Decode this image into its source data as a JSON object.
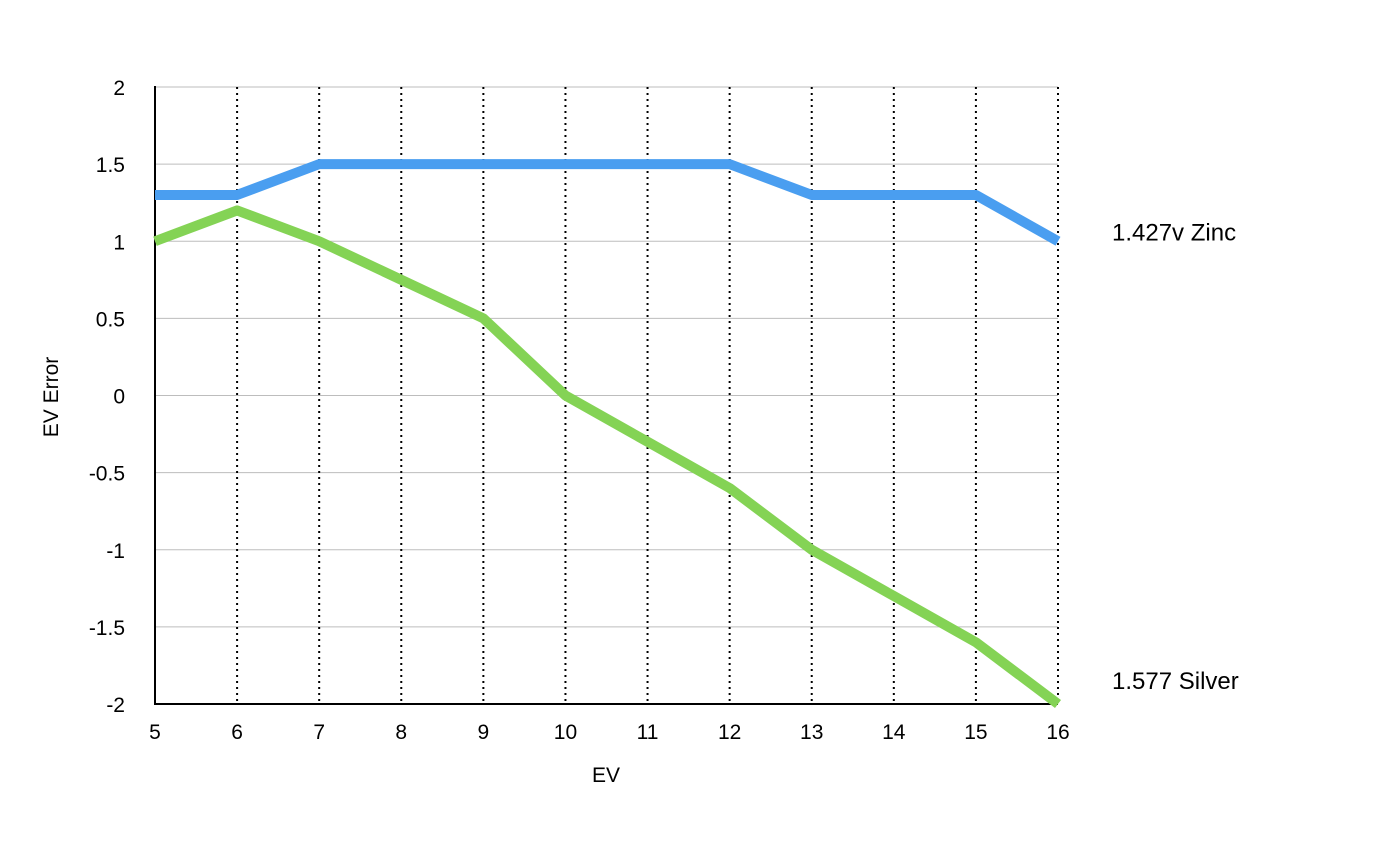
{
  "chart_data": {
    "type": "line",
    "x": [
      5,
      6,
      7,
      8,
      9,
      10,
      11,
      12,
      13,
      14,
      15,
      16
    ],
    "xlabel": "EV",
    "ylabel": "EV Error",
    "xlim": [
      5,
      16
    ],
    "ylim": [
      -2,
      2
    ],
    "y_ticks": [
      "2",
      "1.5",
      "1",
      "0.5",
      "0",
      "-0.5",
      "-1",
      "-1.5",
      "-2"
    ],
    "x_ticks": [
      "5",
      "6",
      "7",
      "8",
      "9",
      "10",
      "11",
      "12",
      "13",
      "14",
      "15",
      "16"
    ],
    "grid": {
      "horizontal": true,
      "vertical": "dotted"
    },
    "series": [
      {
        "name": "1.427v Zinc",
        "color": "#4a9ef0",
        "values": [
          1.3,
          1.3,
          1.5,
          1.5,
          1.5,
          1.5,
          1.5,
          1.5,
          1.3,
          1.3,
          1.3,
          1.0
        ]
      },
      {
        "name": "1.577 Silver",
        "color": "#84d355",
        "values": [
          1.0,
          1.2,
          1.0,
          0.75,
          0.5,
          0.0,
          -0.3,
          -0.6,
          -1.0,
          -1.3,
          -1.6,
          -2.0
        ]
      }
    ]
  }
}
